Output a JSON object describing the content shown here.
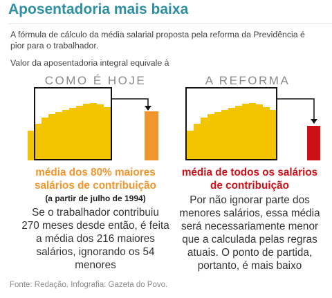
{
  "header": {
    "title": "Aposentadoria mais baixa",
    "intro_line1": "A fórmula de cálculo da média salarial proposta pela reforma da Previdência é",
    "intro_line2": "pior para o trabalhador.",
    "subtitle": "Valor da aposentadoria integral equivale à"
  },
  "colors": {
    "title": "#2d8fa6",
    "bars": "#f2c500",
    "current_accent": "#f0962c",
    "reform_accent": "#cc1016"
  },
  "current": {
    "heading": "COMO É HOJE",
    "lead_line1": "média dos 80% maiores",
    "lead_line2": "salários de contribuição",
    "note": "(a partir de julho de 1994)",
    "body_lines": [
      "Se o trabalhador contribuiu",
      "270 meses desde então, é feita",
      "a média dos 216 maiores",
      "salários, ignorando os 54",
      "menores"
    ]
  },
  "reform": {
    "heading": "A REFORMA",
    "lead_line1": "média de todos os salários",
    "lead_line2": "de contribuição",
    "body_lines": [
      "Por não ignorar parte dos",
      "menores salários, essa média",
      "será necessariamente menor",
      "que a calculada pelas regras",
      "atuais. O ponto de partida,",
      "portanto, é mais baixo"
    ]
  },
  "footer": {
    "source": "Fonte: Redação. Infografia: Gazeta do Povo."
  }
}
